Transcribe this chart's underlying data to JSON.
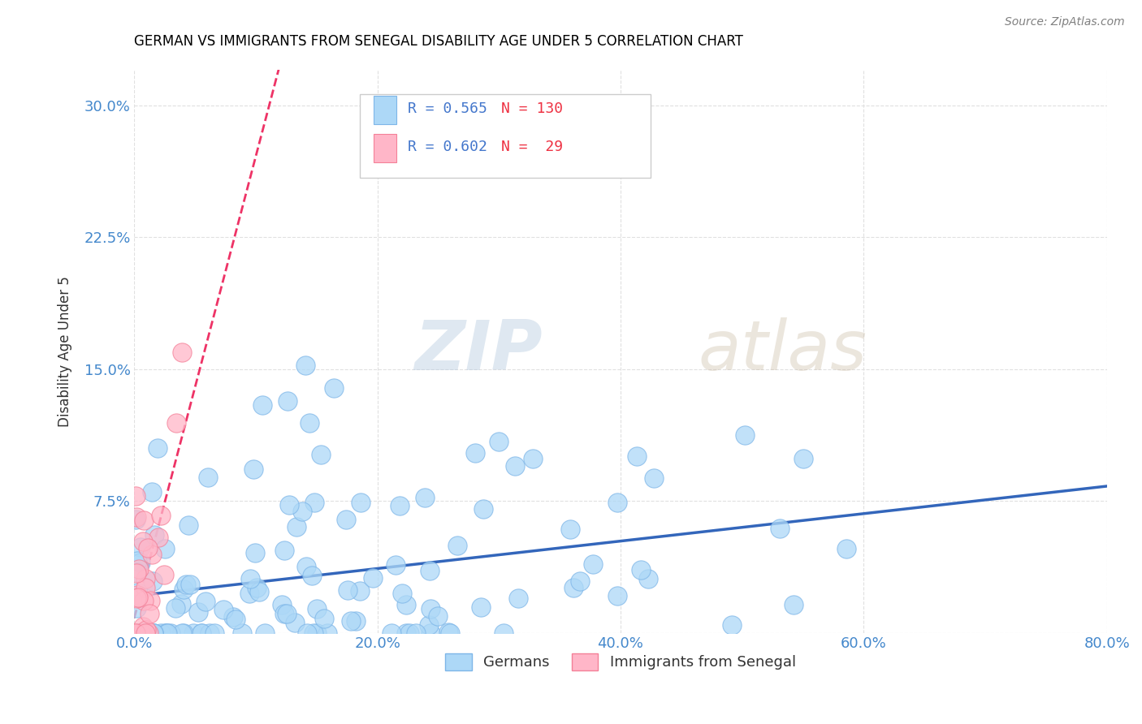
{
  "title": "GERMAN VS IMMIGRANTS FROM SENEGAL DISABILITY AGE UNDER 5 CORRELATION CHART",
  "source": "Source: ZipAtlas.com",
  "ylabel": "Disability Age Under 5",
  "xlim": [
    0.0,
    0.8
  ],
  "ylim": [
    0.0,
    0.32
  ],
  "xticks": [
    0.0,
    0.2,
    0.4,
    0.6,
    0.8
  ],
  "yticks": [
    0.0,
    0.075,
    0.15,
    0.225,
    0.3
  ],
  "xticklabels": [
    "0.0%",
    "20.0%",
    "40.0%",
    "60.0%",
    "80.0%"
  ],
  "yticklabels": [
    "",
    "7.5%",
    "15.0%",
    "22.5%",
    "30.0%"
  ],
  "background_color": "#ffffff",
  "grid_color": "#e0e0e0",
  "watermark_zip": "ZIP",
  "watermark_atlas": "atlas",
  "series": [
    {
      "name": "Germans",
      "color": "#ADD8F7",
      "edge_color": "#7EB6E8",
      "R": 0.565,
      "N": 130,
      "line_color": "#3366BB",
      "line_style": "solid",
      "seed": 42,
      "x_min": 0.001,
      "x_max": 0.78,
      "slope": 0.12,
      "intercept": 0.01,
      "noise": 0.045
    },
    {
      "name": "Immigrants from Senegal",
      "color": "#FFB6C8",
      "edge_color": "#F48098",
      "R": 0.602,
      "N": 29,
      "line_color": "#EE3366",
      "line_style": "dashed",
      "seed": 7,
      "x_min": 0.001,
      "x_max": 0.06,
      "slope": 2.2,
      "intercept": 0.005,
      "noise": 0.04
    }
  ],
  "legend_R_color": "#4477CC",
  "legend_N_color": "#EE3344",
  "bottom_legend_labels": [
    "Germans",
    "Immigrants from Senegal"
  ]
}
